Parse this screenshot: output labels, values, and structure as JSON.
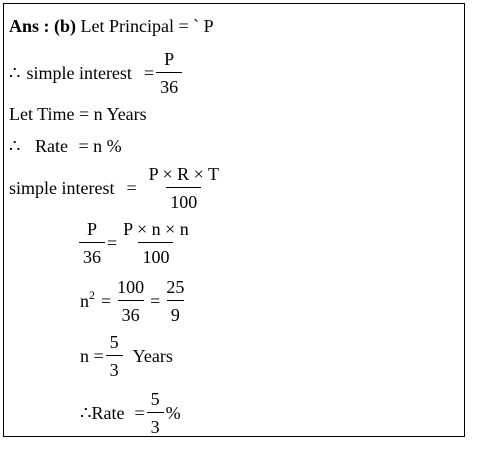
{
  "line1": {
    "ans": "Ans : (b)",
    "text": "Let Principal",
    "eq": "= ` P"
  },
  "line2": {
    "therefore": "∴",
    "label": "simple interest",
    "eq": "=",
    "num": "P",
    "den": "36"
  },
  "line3": {
    "text": "Let Time",
    "eq": "= n Years"
  },
  "line4": {
    "therefore": "∴",
    "label": "Rate",
    "eq": "= n %"
  },
  "line5": {
    "label": "simple interest",
    "eq": "=",
    "num": "P × R × T",
    "den": "100"
  },
  "line6": {
    "lnum": "P",
    "lden": "36",
    "eq": "=",
    "rnum": "P × n × n",
    "rden": "100"
  },
  "line7": {
    "base": "n",
    "exp": "2",
    "eq1": "=",
    "num1": "100",
    "den1": "36",
    "eq2": "=",
    "num2": "25",
    "den2": "9"
  },
  "line8": {
    "lhs": "n =",
    "num": "5",
    "den": "3",
    "unit": "Years"
  },
  "line9": {
    "therefore": "∴",
    "label": "Rate",
    "eq": "=",
    "num": "5",
    "den": "3",
    "unit": "%"
  }
}
